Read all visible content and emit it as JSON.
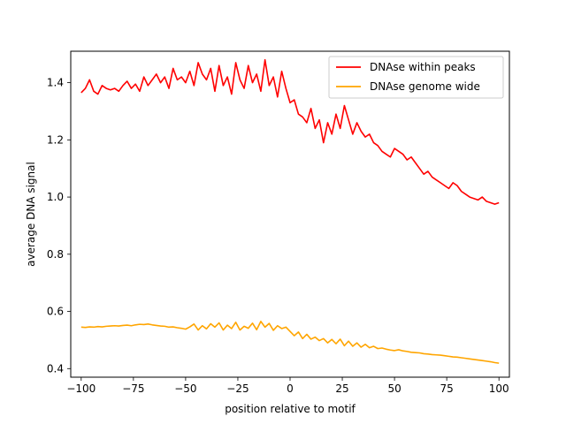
{
  "chart_data": {
    "type": "line",
    "title": "",
    "xlabel": "position relative to motif",
    "ylabel": "average DNA signal",
    "xlim": [
      -105,
      105
    ],
    "ylim": [
      0.37,
      1.51
    ],
    "xticks": [
      -100,
      -75,
      -50,
      -25,
      0,
      25,
      50,
      75,
      100
    ],
    "xtick_labels": [
      "−100",
      "−75",
      "−50",
      "−25",
      "0",
      "25",
      "50",
      "75",
      "100"
    ],
    "yticks": [
      0.4,
      0.6,
      0.8,
      1.0,
      1.2,
      1.4
    ],
    "ytick_labels": [
      "0.4",
      "0.6",
      "0.8",
      "1.0",
      "1.2",
      "1.4"
    ],
    "grid": false,
    "legend_position": "top-right",
    "series": [
      {
        "name": "DNAse within peaks",
        "color": "#ff0000",
        "x": [
          -100,
          -98,
          -96,
          -94,
          -92,
          -90,
          -88,
          -86,
          -84,
          -82,
          -80,
          -78,
          -76,
          -74,
          -72,
          -70,
          -68,
          -66,
          -64,
          -62,
          -60,
          -58,
          -56,
          -54,
          -52,
          -50,
          -48,
          -46,
          -44,
          -42,
          -40,
          -38,
          -36,
          -34,
          -32,
          -30,
          -28,
          -26,
          -24,
          -22,
          -20,
          -18,
          -16,
          -14,
          -12,
          -10,
          -8,
          -6,
          -4,
          -2,
          0,
          2,
          4,
          6,
          8,
          10,
          12,
          14,
          16,
          18,
          20,
          22,
          24,
          26,
          28,
          30,
          32,
          34,
          36,
          38,
          40,
          42,
          44,
          46,
          48,
          50,
          52,
          54,
          56,
          58,
          60,
          62,
          64,
          66,
          68,
          70,
          72,
          74,
          76,
          78,
          80,
          82,
          84,
          86,
          88,
          90,
          92,
          94,
          96,
          98,
          100
        ],
        "values": [
          1.365,
          1.38,
          1.41,
          1.37,
          1.36,
          1.39,
          1.38,
          1.375,
          1.38,
          1.37,
          1.39,
          1.405,
          1.38,
          1.395,
          1.37,
          1.42,
          1.39,
          1.41,
          1.43,
          1.4,
          1.42,
          1.38,
          1.45,
          1.41,
          1.42,
          1.4,
          1.44,
          1.39,
          1.47,
          1.43,
          1.41,
          1.45,
          1.37,
          1.46,
          1.39,
          1.42,
          1.36,
          1.47,
          1.41,
          1.38,
          1.46,
          1.4,
          1.43,
          1.37,
          1.48,
          1.39,
          1.42,
          1.35,
          1.44,
          1.38,
          1.33,
          1.34,
          1.29,
          1.28,
          1.26,
          1.31,
          1.24,
          1.27,
          1.19,
          1.26,
          1.22,
          1.29,
          1.24,
          1.32,
          1.27,
          1.22,
          1.26,
          1.23,
          1.21,
          1.22,
          1.19,
          1.18,
          1.16,
          1.15,
          1.14,
          1.17,
          1.16,
          1.15,
          1.13,
          1.14,
          1.12,
          1.1,
          1.08,
          1.09,
          1.07,
          1.06,
          1.05,
          1.04,
          1.03,
          1.05,
          1.04,
          1.02,
          1.01,
          1.0,
          0.995,
          0.99,
          1.0,
          0.985,
          0.98,
          0.975,
          0.98
        ]
      },
      {
        "name": "DNAse genome wide",
        "color": "#ffa500",
        "x": [
          -100,
          -98,
          -96,
          -94,
          -92,
          -90,
          -88,
          -86,
          -84,
          -82,
          -80,
          -78,
          -76,
          -74,
          -72,
          -70,
          -68,
          -66,
          -64,
          -62,
          -60,
          -58,
          -56,
          -54,
          -52,
          -50,
          -48,
          -46,
          -44,
          -42,
          -40,
          -38,
          -36,
          -34,
          -32,
          -30,
          -28,
          -26,
          -24,
          -22,
          -20,
          -18,
          -16,
          -14,
          -12,
          -10,
          -8,
          -6,
          -4,
          -2,
          0,
          2,
          4,
          6,
          8,
          10,
          12,
          14,
          16,
          18,
          20,
          22,
          24,
          26,
          28,
          30,
          32,
          34,
          36,
          38,
          40,
          42,
          44,
          46,
          48,
          50,
          52,
          54,
          56,
          58,
          60,
          62,
          64,
          66,
          68,
          70,
          72,
          74,
          76,
          78,
          80,
          82,
          84,
          86,
          88,
          90,
          92,
          94,
          96,
          98,
          100
        ],
        "values": [
          0.545,
          0.544,
          0.546,
          0.545,
          0.547,
          0.546,
          0.548,
          0.549,
          0.55,
          0.549,
          0.551,
          0.552,
          0.55,
          0.553,
          0.555,
          0.554,
          0.556,
          0.553,
          0.551,
          0.549,
          0.548,
          0.545,
          0.546,
          0.543,
          0.541,
          0.538,
          0.546,
          0.556,
          0.535,
          0.55,
          0.539,
          0.557,
          0.545,
          0.56,
          0.535,
          0.552,
          0.54,
          0.562,
          0.535,
          0.548,
          0.541,
          0.559,
          0.536,
          0.565,
          0.545,
          0.558,
          0.534,
          0.55,
          0.54,
          0.545,
          0.53,
          0.515,
          0.528,
          0.505,
          0.52,
          0.503,
          0.51,
          0.498,
          0.505,
          0.49,
          0.502,
          0.487,
          0.503,
          0.48,
          0.496,
          0.478,
          0.49,
          0.475,
          0.485,
          0.473,
          0.478,
          0.47,
          0.472,
          0.468,
          0.465,
          0.463,
          0.466,
          0.462,
          0.46,
          0.457,
          0.456,
          0.455,
          0.452,
          0.451,
          0.449,
          0.448,
          0.447,
          0.445,
          0.443,
          0.441,
          0.44,
          0.438,
          0.436,
          0.434,
          0.432,
          0.43,
          0.428,
          0.426,
          0.424,
          0.421,
          0.419
        ]
      }
    ]
  }
}
